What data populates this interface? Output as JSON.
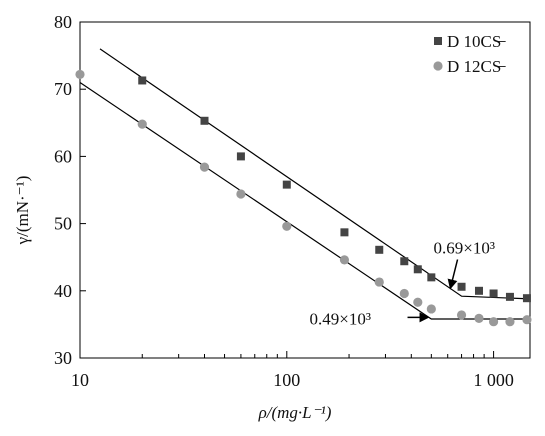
{
  "chart_data": {
    "type": "scatter",
    "xlabel": "ρ/(mg·L⁻¹)",
    "ylabel": "γ/(mN·⁻¹)",
    "xscale": "log",
    "xlim": [
      10,
      1500
    ],
    "ylim": [
      30,
      80
    ],
    "x_ticks": [
      10,
      100,
      1000
    ],
    "x_tick_labels": [
      "10",
      "100",
      "1 000"
    ],
    "y_ticks": [
      30,
      40,
      50,
      60,
      70,
      80
    ],
    "y_tick_labels": [
      "30",
      "40",
      "50",
      "60",
      "70",
      "80"
    ],
    "grid": false,
    "legend_position": "top-right",
    "series": [
      {
        "name": "D 10CS̶",
        "marker": "square",
        "color": "#444444",
        "x": [
          20,
          40,
          60,
          100,
          190,
          280,
          370,
          430,
          500,
          700,
          850,
          1000,
          1200,
          1450
        ],
        "y": [
          71.3,
          65.3,
          60,
          55.8,
          48.7,
          46.1,
          44.4,
          43.2,
          42,
          40.6,
          40.0,
          39.6,
          39.1,
          38.9
        ]
      },
      {
        "name": "D 12CS̶",
        "marker": "circle",
        "color": "#999999",
        "x": [
          10,
          20,
          40,
          60,
          100,
          190,
          280,
          370,
          430,
          500,
          700,
          850,
          1000,
          1200,
          1450
        ],
        "y": [
          72.2,
          64.8,
          58.4,
          54.4,
          49.6,
          44.6,
          41.3,
          39.6,
          38.3,
          37.3,
          36.4,
          35.9,
          35.4,
          35.4,
          35.7
        ]
      }
    ],
    "fit_lines": [
      {
        "series": "D 10CS̶",
        "x": [
          12.5,
          700,
          1500
        ],
        "y": [
          76.0,
          39.2,
          38.8
        ]
      },
      {
        "series": "D 12CS̶",
        "x": [
          10,
          500,
          1500
        ],
        "y": [
          71.0,
          35.8,
          35.8
        ]
      }
    ],
    "annotations": [
      {
        "text": "0.69×10³",
        "x": 700,
        "y": 39.3
      },
      {
        "text": "0.49×10³",
        "x": 490,
        "y": 35.9
      }
    ]
  }
}
